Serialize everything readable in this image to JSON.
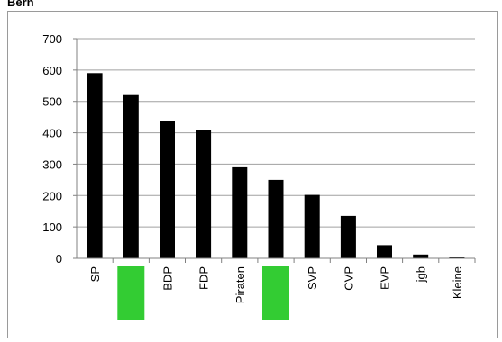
{
  "title": "Bern",
  "chart_data": {
    "type": "bar",
    "categories": [
      "SP",
      "",
      "BDP",
      "FDP",
      "Piraten",
      "",
      "SVP",
      "CVP",
      "EVP",
      "jgb",
      "Kleine"
    ],
    "category_markers": [
      null,
      "green-box",
      null,
      null,
      null,
      "green-box",
      null,
      null,
      null,
      null,
      null
    ],
    "values": [
      590,
      520,
      437,
      410,
      290,
      250,
      202,
      135,
      42,
      12,
      5
    ],
    "yticks": [
      0,
      100,
      200,
      300,
      400,
      500,
      600,
      700
    ],
    "ylim": [
      0,
      700
    ],
    "grid": true,
    "colors": {
      "bar": "#000000",
      "grid": "#a0a0a0",
      "axis": "#808080",
      "marker": "#33cc33"
    }
  }
}
